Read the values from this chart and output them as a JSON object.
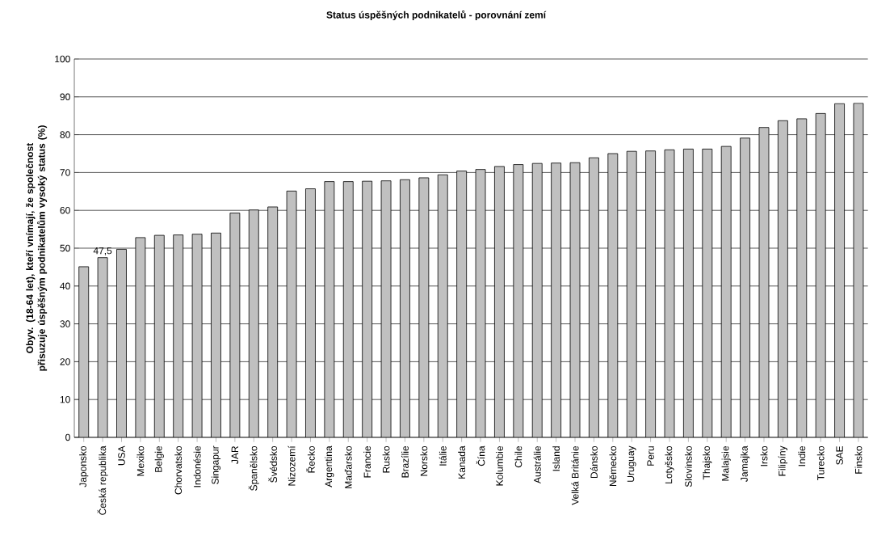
{
  "chart_data": {
    "type": "bar",
    "title": "Status úspěšných podnikatelů - porovnání zemí",
    "ylabel": "Obyv. (18-64 let), kteří vnímají, že společnost přisuzuje úspěšným podnikatelům vysoký status (%)",
    "categories": [
      "Japonsko",
      "Česká republika",
      "USA",
      "Mexiko",
      "Belgie",
      "Chorvatsko",
      "Indonésie",
      "Singapur",
      "JAR",
      "Španělsko",
      "Švédsko",
      "Nizozemí",
      "Řecko",
      "Argentina",
      "Maďarsko",
      "Francie",
      "Rusko",
      "Brazílie",
      "Norsko",
      "Itálie",
      "Kanada",
      "Čína",
      "Kolumbie",
      "Chile",
      "Austrálie",
      "Island",
      "Velká Británie",
      "Dánsko",
      "Německo",
      "Uruguay",
      "Peru",
      "Lotyšsko",
      "Slovinsko",
      "Thajsko",
      "Malajsie",
      "Jamajka",
      "Irsko",
      "Filipíny",
      "Indie",
      "Turecko",
      "SAE",
      "Finsko"
    ],
    "values": [
      45.1,
      47.5,
      49.7,
      52.8,
      53.4,
      53.5,
      53.7,
      54.0,
      59.3,
      60.1,
      60.9,
      65.1,
      65.7,
      67.6,
      67.6,
      67.7,
      67.8,
      68.1,
      68.6,
      69.4,
      70.4,
      70.8,
      71.6,
      72.1,
      72.4,
      72.5,
      72.6,
      73.9,
      75.0,
      75.6,
      75.7,
      76.0,
      76.2,
      76.2,
      76.9,
      79.1,
      81.9,
      83.7,
      84.2,
      85.6,
      88.2,
      88.3
    ],
    "value_labels": [
      null,
      "47,5",
      null,
      null,
      null,
      null,
      null,
      null,
      null,
      null,
      null,
      null,
      null,
      null,
      null,
      null,
      null,
      null,
      null,
      null,
      null,
      null,
      null,
      null,
      null,
      null,
      null,
      null,
      null,
      null,
      null,
      null,
      null,
      null,
      null,
      null,
      null,
      null,
      null,
      null,
      null,
      null
    ],
    "color": "#c0c0c0",
    "ylim": [
      0,
      100
    ],
    "yticks": [
      0,
      10,
      20,
      30,
      40,
      50,
      60,
      70,
      80,
      90,
      100
    ],
    "grid": "y"
  }
}
